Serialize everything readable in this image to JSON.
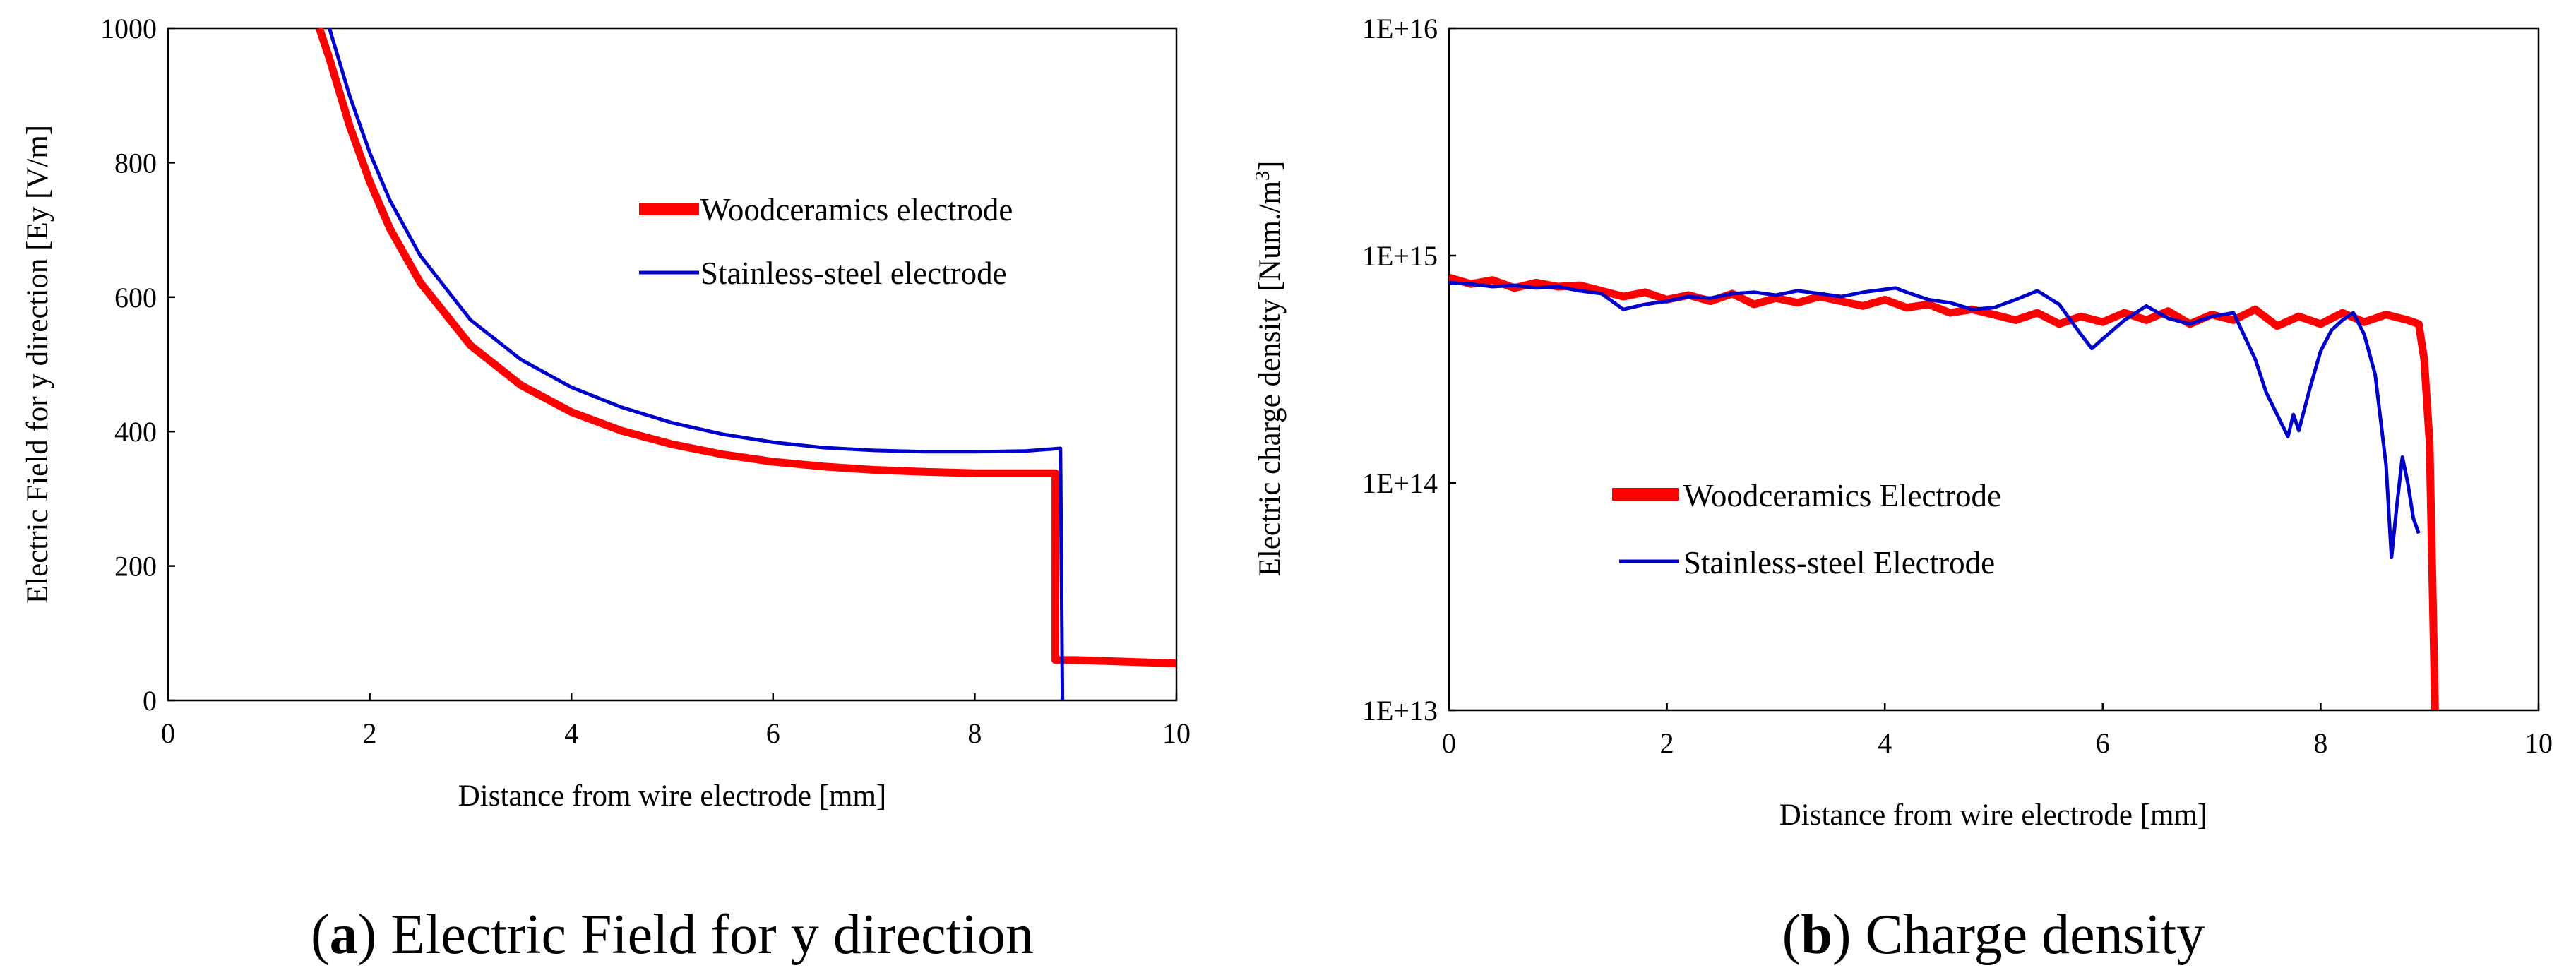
{
  "chart_data": [
    {
      "type": "line",
      "panel": "a",
      "caption_letter": "a",
      "caption_text": " Electric Field for y direction",
      "xlabel": "Distance from wire electrode [mm]",
      "ylabel": "Electric Field for y direction [Ey [V/m]",
      "xlim": [
        0,
        10
      ],
      "ylim": [
        0,
        1000
      ],
      "xticks": [
        0,
        2,
        4,
        6,
        8,
        10
      ],
      "yticks": [
        0,
        200,
        400,
        600,
        800,
        1000
      ],
      "xtick_labels": [
        "0",
        "2",
        "4",
        "6",
        "8",
        "10"
      ],
      "ytick_labels": [
        "0",
        "200",
        "400",
        "600",
        "800",
        "1000"
      ],
      "legend": [
        "Woodceramics electrode",
        "Stainless-steel electrode"
      ],
      "series": [
        {
          "name": "Woodceramics electrode",
          "color": "#ff0000",
          "x": [
            1.5,
            1.6,
            1.8,
            2.0,
            2.2,
            2.5,
            3.0,
            3.5,
            4.0,
            4.5,
            5.0,
            5.5,
            6.0,
            6.5,
            7.0,
            7.5,
            8.0,
            8.5,
            8.8,
            8.8,
            8.85,
            9.0,
            10.0
          ],
          "y": [
            1000,
            955,
            855,
            772,
            702,
            622,
            528,
            469,
            429,
            401,
            381,
            366,
            355,
            348,
            343,
            340,
            338,
            338,
            338,
            60,
            60,
            60,
            55
          ]
        },
        {
          "name": "Stainless-steel electrode",
          "color": "#0000cc",
          "x": [
            1.6,
            1.8,
            2.0,
            2.2,
            2.5,
            3.0,
            3.5,
            4.0,
            4.5,
            5.0,
            5.5,
            6.0,
            6.5,
            7.0,
            7.5,
            8.0,
            8.5,
            8.85,
            8.87
          ],
          "y": [
            1000,
            900,
            815,
            744,
            662,
            566,
            507,
            466,
            436,
            413,
            396,
            384,
            376,
            372,
            370,
            370,
            371,
            375,
            0
          ]
        }
      ]
    },
    {
      "type": "line",
      "panel": "b",
      "caption_letter": "b",
      "caption_text": " Charge density",
      "xlabel": "Distance from wire electrode [mm]",
      "ylabel_main": "Electric charge density [Num./m",
      "ylabel_sup": "3",
      "ylabel_end": "]",
      "yscale": "log",
      "xlim": [
        0,
        10
      ],
      "ylim": [
        10000000000000.0,
        1e+16
      ],
      "xticks": [
        0,
        2,
        4,
        6,
        8,
        10
      ],
      "yticks": [
        10000000000000.0,
        100000000000000.0,
        1000000000000000.0,
        1e+16
      ],
      "xtick_labels": [
        "0",
        "2",
        "4",
        "6",
        "8",
        "10"
      ],
      "ytick_labels": [
        "1E+13",
        "1E+14",
        "1E+15",
        "1E+16"
      ],
      "legend": [
        "Woodceramics Electrode",
        "Stainless-steel Electrode"
      ],
      "series": [
        {
          "name": "Woodceramics Electrode",
          "color": "#ff0000",
          "x": [
            0,
            0.2,
            0.4,
            0.6,
            0.8,
            1.0,
            1.2,
            1.4,
            1.6,
            1.8,
            2.0,
            2.2,
            2.4,
            2.6,
            2.8,
            3.0,
            3.2,
            3.4,
            3.6,
            3.8,
            4.0,
            4.2,
            4.4,
            4.6,
            4.8,
            5.0,
            5.2,
            5.4,
            5.6,
            5.8,
            6.0,
            6.2,
            6.4,
            6.6,
            6.8,
            7.0,
            7.2,
            7.4,
            7.6,
            7.8,
            8.0,
            8.2,
            8.4,
            8.6,
            8.8,
            8.9,
            8.95,
            9.0,
            9.03,
            9.05
          ],
          "y": [
            800000000000000.0,
            750000000000000.0,
            780000000000000.0,
            720000000000000.0,
            760000000000000.0,
            730000000000000.0,
            740000000000000.0,
            700000000000000.0,
            660000000000000.0,
            690000000000000.0,
            640000000000000.0,
            670000000000000.0,
            630000000000000.0,
            680000000000000.0,
            610000000000000.0,
            650000000000000.0,
            620000000000000.0,
            660000000000000.0,
            630000000000000.0,
            600000000000000.0,
            640000000000000.0,
            590000000000000.0,
            610000000000000.0,
            560000000000000.0,
            580000000000000.0,
            550000000000000.0,
            520000000000000.0,
            560000000000000.0,
            500000000000000.0,
            540000000000000.0,
            510000000000000.0,
            560000000000000.0,
            520000000000000.0,
            570000000000000.0,
            500000000000000.0,
            550000000000000.0,
            520000000000000.0,
            580000000000000.0,
            490000000000000.0,
            540000000000000.0,
            500000000000000.0,
            560000000000000.0,
            510000000000000.0,
            550000000000000.0,
            520000000000000.0,
            500000000000000.0,
            350000000000000.0,
            150000000000000.0,
            30000000000000.0,
            10000000000000.0
          ]
        },
        {
          "name": "Stainless-steel Electrode",
          "color": "#0000cc",
          "x": [
            0,
            0.2,
            0.4,
            0.6,
            0.8,
            1.0,
            1.2,
            1.4,
            1.6,
            1.8,
            2.0,
            2.2,
            2.4,
            2.6,
            2.8,
            3.0,
            3.2,
            3.4,
            3.6,
            3.8,
            4.0,
            4.1,
            4.2,
            4.4,
            4.6,
            4.8,
            5.0,
            5.2,
            5.4,
            5.6,
            5.8,
            5.9,
            6.0,
            6.2,
            6.4,
            6.6,
            6.8,
            7.0,
            7.2,
            7.4,
            7.5,
            7.6,
            7.7,
            7.75,
            7.8,
            7.9,
            8.0,
            8.1,
            8.2,
            8.3,
            8.4,
            8.5,
            8.6,
            8.65,
            8.7,
            8.75,
            8.8,
            8.85,
            8.9
          ],
          "y": [
            760000000000000.0,
            750000000000000.0,
            730000000000000.0,
            740000000000000.0,
            720000000000000.0,
            730000000000000.0,
            700000000000000.0,
            680000000000000.0,
            580000000000000.0,
            610000000000000.0,
            630000000000000.0,
            660000000000000.0,
            650000000000000.0,
            680000000000000.0,
            690000000000000.0,
            670000000000000.0,
            700000000000000.0,
            680000000000000.0,
            660000000000000.0,
            690000000000000.0,
            710000000000000.0,
            720000000000000.0,
            690000000000000.0,
            640000000000000.0,
            620000000000000.0,
            580000000000000.0,
            590000000000000.0,
            640000000000000.0,
            700000000000000.0,
            610000000000000.0,
            450000000000000.0,
            390000000000000.0,
            430000000000000.0,
            520000000000000.0,
            600000000000000.0,
            530000000000000.0,
            500000000000000.0,
            540000000000000.0,
            560000000000000.0,
            350000000000000.0,
            250000000000000.0,
            200000000000000.0,
            160000000000000.0,
            200000000000000.0,
            170000000000000.0,
            260000000000000.0,
            380000000000000.0,
            470000000000000.0,
            520000000000000.0,
            560000000000000.0,
            450000000000000.0,
            300000000000000.0,
            120000000000000.0,
            47000000000000.0,
            80000000000000.0,
            130000000000000.0,
            100000000000000.0,
            70000000000000.0,
            60000000000000.0
          ]
        }
      ]
    }
  ]
}
